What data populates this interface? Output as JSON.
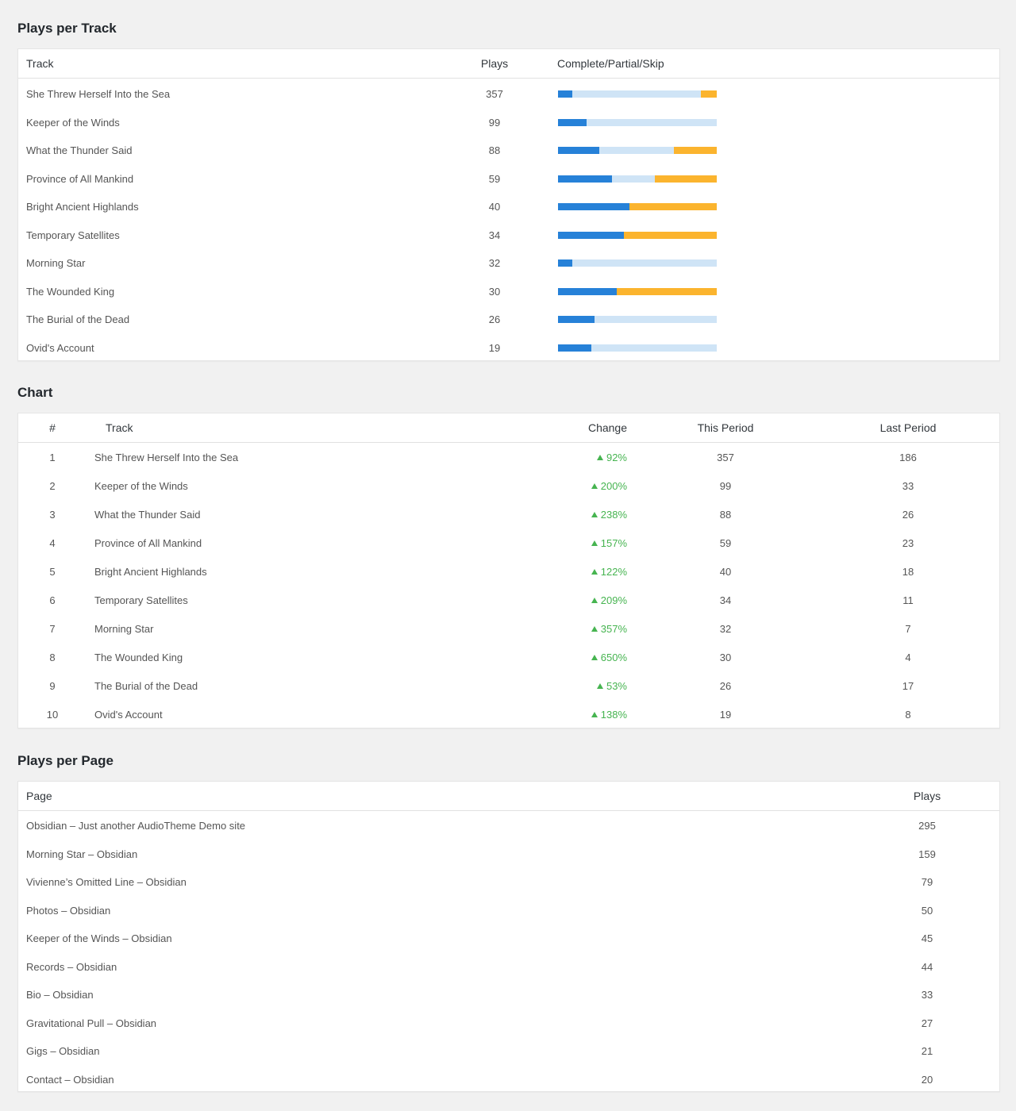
{
  "plays_per_track": {
    "title": "Plays per Track",
    "headers": {
      "track": "Track",
      "plays": "Plays",
      "breakdown": "Complete/Partial/Skip"
    },
    "colors": {
      "complete": "#2681d8",
      "partial": "#cfe4f6",
      "skip": "#fbb42e"
    },
    "rows": [
      {
        "track": "She Threw Herself Into the Sea",
        "plays": "357",
        "complete": 0.09,
        "partial": 0.81,
        "skip": 0.1
      },
      {
        "track": "Keeper of the Winds",
        "plays": "99",
        "complete": 0.18,
        "partial": 0.82,
        "skip": 0.0
      },
      {
        "track": "What the Thunder Said",
        "plays": "88",
        "complete": 0.26,
        "partial": 0.47,
        "skip": 0.27
      },
      {
        "track": "Province of All Mankind",
        "plays": "59",
        "complete": 0.34,
        "partial": 0.27,
        "skip": 0.39
      },
      {
        "track": "Bright Ancient Highlands",
        "plays": "40",
        "complete": 0.45,
        "partial": 0.0,
        "skip": 0.55
      },
      {
        "track": "Temporary Satellites",
        "plays": "34",
        "complete": 0.415,
        "partial": 0.0,
        "skip": 0.585
      },
      {
        "track": "Morning Star",
        "plays": "32",
        "complete": 0.09,
        "partial": 0.91,
        "skip": 0.0
      },
      {
        "track": "The Wounded King",
        "plays": "30",
        "complete": 0.37,
        "partial": 0.0,
        "skip": 0.63
      },
      {
        "track": "The Burial of the Dead",
        "plays": "26",
        "complete": 0.23,
        "partial": 0.77,
        "skip": 0.0
      },
      {
        "track": "Ovid's Account",
        "plays": "19",
        "complete": 0.21,
        "partial": 0.79,
        "skip": 0.0
      }
    ]
  },
  "chart": {
    "title": "Chart",
    "headers": {
      "rank": "#",
      "track": "Track",
      "change": "Change",
      "this_period": "This Period",
      "last_period": "Last Period"
    },
    "change_color": "#46b450",
    "rows": [
      {
        "rank": "1",
        "track": "She Threw Herself Into the Sea",
        "change": "92%",
        "this_period": "357",
        "last_period": "186"
      },
      {
        "rank": "2",
        "track": "Keeper of the Winds",
        "change": "200%",
        "this_period": "99",
        "last_period": "33"
      },
      {
        "rank": "3",
        "track": "What the Thunder Said",
        "change": "238%",
        "this_period": "88",
        "last_period": "26"
      },
      {
        "rank": "4",
        "track": "Province of All Mankind",
        "change": "157%",
        "this_period": "59",
        "last_period": "23"
      },
      {
        "rank": "5",
        "track": "Bright Ancient Highlands",
        "change": "122%",
        "this_period": "40",
        "last_period": "18"
      },
      {
        "rank": "6",
        "track": "Temporary Satellites",
        "change": "209%",
        "this_period": "34",
        "last_period": "11"
      },
      {
        "rank": "7",
        "track": "Morning Star",
        "change": "357%",
        "this_period": "32",
        "last_period": "7"
      },
      {
        "rank": "8",
        "track": "The Wounded King",
        "change": "650%",
        "this_period": "30",
        "last_period": "4"
      },
      {
        "rank": "9",
        "track": "The Burial of the Dead",
        "change": "53%",
        "this_period": "26",
        "last_period": "17"
      },
      {
        "rank": "10",
        "track": "Ovid's Account",
        "change": "138%",
        "this_period": "19",
        "last_period": "8"
      }
    ]
  },
  "plays_per_page": {
    "title": "Plays per Page",
    "headers": {
      "page": "Page",
      "plays": "Plays"
    },
    "rows": [
      {
        "page": "Obsidian – Just another AudioTheme Demo site",
        "plays": "295"
      },
      {
        "page": "Morning Star – Obsidian",
        "plays": "159"
      },
      {
        "page": "Vivienne’s Omitted Line – Obsidian",
        "plays": "79"
      },
      {
        "page": "Photos – Obsidian",
        "plays": "50"
      },
      {
        "page": "Keeper of the Winds – Obsidian",
        "plays": "45"
      },
      {
        "page": "Records – Obsidian",
        "plays": "44"
      },
      {
        "page": "Bio – Obsidian",
        "plays": "33"
      },
      {
        "page": "Gravitational Pull – Obsidian",
        "plays": "27"
      },
      {
        "page": "Gigs – Obsidian",
        "plays": "21"
      },
      {
        "page": "Contact – Obsidian",
        "plays": "20"
      }
    ]
  }
}
